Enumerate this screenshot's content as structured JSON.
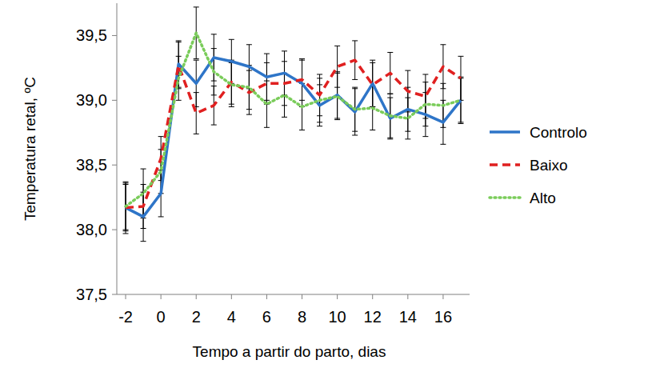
{
  "chart_data": {
    "type": "line",
    "x_label": "Tempo a partir do parto, dias",
    "y_label": "Temperatura retal, ºC",
    "x": [
      -2,
      -1,
      0,
      1,
      2,
      3,
      4,
      5,
      6,
      7,
      8,
      9,
      10,
      11,
      12,
      13,
      14,
      15,
      16,
      17
    ],
    "xlim": [
      -2.5,
      17.5
    ],
    "xticks": [
      -2,
      0,
      2,
      4,
      6,
      8,
      10,
      12,
      14,
      16
    ],
    "ylim": [
      37.5,
      39.75
    ],
    "yticks": [
      {
        "value": 37.5,
        "label": "37,5"
      },
      {
        "value": 38.0,
        "label": "38,0"
      },
      {
        "value": 38.5,
        "label": "38,5"
      },
      {
        "value": 39.0,
        "label": "39,0"
      },
      {
        "value": 39.5,
        "label": "39,5"
      }
    ],
    "grid": false,
    "legend": "right",
    "series": [
      {
        "name": "Controlo",
        "color": "#2e75c8",
        "line_style": "solid",
        "values": [
          38.17,
          38.1,
          38.28,
          39.28,
          39.13,
          39.33,
          39.3,
          39.26,
          39.18,
          39.21,
          39.13,
          38.96,
          39.04,
          38.91,
          39.13,
          38.86,
          38.93,
          38.89,
          38.83,
          39.0
        ],
        "errors": [
          0.2,
          0.19,
          0.18,
          0.18,
          0.18,
          0.18,
          0.17,
          0.17,
          0.18,
          0.17,
          0.18,
          0.16,
          0.18,
          0.18,
          0.18,
          0.16,
          0.17,
          0.17,
          0.17,
          0.18
        ]
      },
      {
        "name": "Baixo",
        "color": "#e02020",
        "line_style": "dashed",
        "values": [
          38.17,
          38.18,
          38.55,
          39.27,
          38.9,
          38.96,
          39.14,
          39.06,
          39.13,
          39.13,
          39.16,
          39.04,
          39.26,
          39.31,
          39.12,
          39.21,
          39.07,
          39.03,
          39.26,
          39.17
        ],
        "errors": [
          0.18,
          0.17,
          0.17,
          0.18,
          0.16,
          0.15,
          0.17,
          0.17,
          0.16,
          0.17,
          0.16,
          0.16,
          0.16,
          0.15,
          0.17,
          0.16,
          0.16,
          0.17,
          0.17,
          0.17
        ]
      },
      {
        "name": "Alto",
        "color": "#7acc5a",
        "line_style": "dotted",
        "values": [
          38.18,
          38.28,
          38.45,
          39.17,
          39.52,
          39.22,
          39.12,
          39.1,
          38.97,
          39.04,
          38.95,
          39.0,
          39.03,
          38.93,
          38.94,
          38.88,
          38.86,
          38.97,
          38.96,
          39.0
        ],
        "errors": [
          0.18,
          0.19,
          0.17,
          0.17,
          0.2,
          0.18,
          0.17,
          0.17,
          0.18,
          0.17,
          0.18,
          0.17,
          0.18,
          0.17,
          0.17,
          0.17,
          0.16,
          0.17,
          0.17,
          0.17
        ]
      }
    ]
  }
}
